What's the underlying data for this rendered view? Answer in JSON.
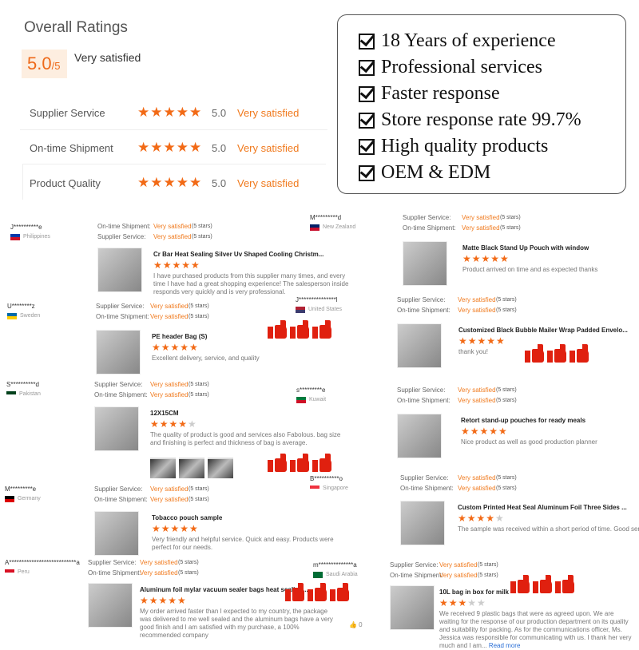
{
  "overall": {
    "title": "Overall Ratings",
    "score": "5.0",
    "out_of": "/5",
    "label": "Very satisfied",
    "rows": [
      {
        "label": "Supplier Service",
        "stars": 5,
        "value": "5.0",
        "text": "Very satisfied"
      },
      {
        "label": "On-time Shipment",
        "stars": 5,
        "value": "5.0",
        "text": "Very satisfied"
      },
      {
        "label": "Product Quality",
        "stars": 5,
        "value": "5.0",
        "text": "Very satisfied"
      }
    ]
  },
  "features": [
    "18 Years of experience",
    "Professional services",
    "Faster response",
    "Store response rate 99.7%",
    "High quality products",
    "OEM & EDM"
  ],
  "colors": {
    "accent": "#f26a16",
    "thumbs": "#e0200f"
  },
  "reviews": [
    {
      "name": "J**********e",
      "country": "Philippines",
      "flag": [
        "#0038a8",
        "#ce1126"
      ],
      "ratings": [
        [
          "On-time Shipment:",
          "Very satisfied",
          "(5 stars)"
        ],
        [
          "Supplier Service:",
          "Very satisfied",
          "(5 stars)"
        ]
      ],
      "product": "Cr Bar Heat Sealing Silver Uv Shaped Cooling Christm...",
      "stars": 5,
      "text": "I have purchased products from this supplier many times, and every time I have had a great shopping experience! The salesperson inside responds very quickly and is very professional."
    },
    {
      "name": "M*********d",
      "country": "New Zealand",
      "flag": [
        "#012169",
        "#c8102e"
      ],
      "ratings": [
        [
          "Supplier Service:",
          "Very satisfied",
          "(5 stars)"
        ],
        [
          "On-time Shipment:",
          "Very satisfied",
          "(5 stars)"
        ]
      ],
      "product": "Matte Black Stand Up Pouch with window",
      "stars": 5,
      "text": "Product arrived on time and as expected thanks"
    },
    {
      "name": "U********z",
      "country": "Sweden",
      "flag": [
        "#006aa7",
        "#fecc00"
      ],
      "ratings": [
        [
          "Supplier Service:",
          "Very satisfied",
          "(5 stars)"
        ],
        [
          "On-time Shipment:",
          "Very satisfied",
          "(5 stars)"
        ]
      ],
      "product": "PE header Bag (S)",
      "stars": 5,
      "text": "Excellent delivery, service, and quality"
    },
    {
      "name": "J***************l",
      "country": "United States",
      "flag": [
        "#b22234",
        "#3c3b6e"
      ],
      "ratings": [
        [
          "Supplier Service:",
          "Very satisfied",
          "(5 stars)"
        ],
        [
          "On-time Shipment:",
          "Very satisfied",
          "(5 stars)"
        ]
      ],
      "product": "Customized Black Bubble Mailer Wrap Padded Envelo...",
      "stars": 5,
      "text": "thank you!"
    },
    {
      "name": "S**********d",
      "country": "Pakistan",
      "flag": [
        "#01411c",
        "#ffffff"
      ],
      "ratings": [
        [
          "Supplier Service:",
          "Very satisfied",
          "(5 stars)"
        ],
        [
          "On-time Shipment:",
          "Very satisfied",
          "(5 stars)"
        ]
      ],
      "product": "12X15CM",
      "stars": 4,
      "text": "The quality of product is good and services also Fabolous. bag size and finishing is perfect and thickness of bag is average."
    },
    {
      "name": "s*********e",
      "country": "Kuwait",
      "flag": [
        "#007a3d",
        "#ce1126"
      ],
      "ratings": [
        [
          "Supplier Service:",
          "Very satisfied",
          "(5 stars)"
        ],
        [
          "On-time Shipment:",
          "Very satisfied",
          "(5 stars)"
        ]
      ],
      "product": "Retort stand-up pouches for ready meals",
      "stars": 5,
      "text": "Nice product as well as good production planner"
    },
    {
      "name": "M*********e",
      "country": "Germany",
      "flag": [
        "#000000",
        "#dd0000"
      ],
      "ratings": [
        [
          "Supplier Service:",
          "Very satisfied",
          "(5 stars)"
        ],
        [
          "On-time Shipment:",
          "Very satisfied",
          "(5 stars)"
        ]
      ],
      "product": "Tobacco pouch sample",
      "stars": 5,
      "text": "Very friendly and helpful service. Quick and easy. Products were perfect for our needs."
    },
    {
      "name": "B**********o",
      "country": "Singapore",
      "flag": [
        "#ef3340",
        "#ffffff"
      ],
      "ratings": [
        [
          "Supplier Service:",
          "Very satisfied",
          "(5 stars)"
        ],
        [
          "On-time Shipment:",
          "Very satisfied",
          "(5 stars)"
        ]
      ],
      "product": "Custom Printed Heat Seal Aluminum Foil Three Sides ...",
      "stars": 4,
      "text": "The sample was received within a short period of time. Good servi"
    },
    {
      "name": "A***************************a",
      "country": "Peru",
      "flag": [
        "#d91023",
        "#ffffff"
      ],
      "ratings": [
        [
          "Supplier Service:",
          "Very satisfied",
          "(5 stars)"
        ],
        [
          "On-time Shipment:",
          "Very satisfied",
          "(5 stars)"
        ]
      ],
      "product": "Aluminum foil mylar vacuum sealer bags heat sealing...",
      "stars": 5,
      "text": "My order arrived faster than I expected to my country, the package was delivered to me well sealed and the aluminum bags have a very good finish and I am satisfied with my purchase, a 100% recommended company",
      "likes": "0"
    },
    {
      "name": "m**************a",
      "country": "Saudi Arabia",
      "flag": [
        "#006c35",
        "#006c35"
      ],
      "ratings": [
        [
          "Supplier Service:",
          "Very satisfied",
          "(5 stars)"
        ],
        [
          "On-time Shipment:",
          "Very satisfied",
          "(5 stars)"
        ]
      ],
      "product": "10L bag in box for milk",
      "stars": 3,
      "text": "We received 9 plastic bags that were as agreed upon.  We are waiting for the response of our production department on its quality and suitability for packing.  As for the communications officer, Ms. Jessica was responsible for communicating with us. I thank her very much and I am...",
      "read_more": "Read more"
    }
  ]
}
